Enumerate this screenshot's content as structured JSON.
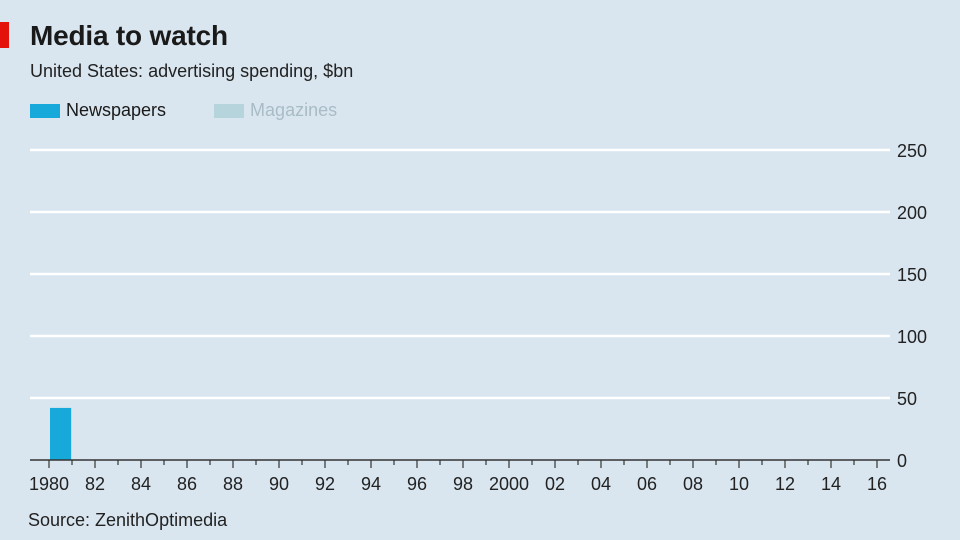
{
  "header": {
    "title": "Media to watch",
    "subtitle": "United States: advertising spending, $bn"
  },
  "legend": [
    {
      "label": "Newspapers",
      "color": "#18a9db",
      "text_color": "#1a1a1a"
    },
    {
      "label": "Magazines",
      "color": "#b6d4dc",
      "text_color": "#a9bcc6"
    }
  ],
  "source": "Source: ZenithOptimedia",
  "colors": {
    "background": "#d9e6ef",
    "gridline": "#ffffff",
    "accent": "#e3120b"
  },
  "chart_data": {
    "type": "bar",
    "title": "Media to watch",
    "subtitle": "United States: advertising spending, $bn",
    "xlabel": "",
    "ylabel": "",
    "x_range": [
      1980,
      2016
    ],
    "ylim": [
      0,
      250
    ],
    "y_ticks": [
      0,
      50,
      100,
      150,
      200,
      250
    ],
    "x_tick_labels": [
      {
        "year": 1980,
        "label": "1980"
      },
      {
        "year": 1982,
        "label": "82"
      },
      {
        "year": 1984,
        "label": "84"
      },
      {
        "year": 1986,
        "label": "86"
      },
      {
        "year": 1988,
        "label": "88"
      },
      {
        "year": 1990,
        "label": "90"
      },
      {
        "year": 1992,
        "label": "92"
      },
      {
        "year": 1994,
        "label": "94"
      },
      {
        "year": 1996,
        "label": "96"
      },
      {
        "year": 1998,
        "label": "98"
      },
      {
        "year": 2000,
        "label": "2000"
      },
      {
        "year": 2002,
        "label": "02"
      },
      {
        "year": 2004,
        "label": "04"
      },
      {
        "year": 2006,
        "label": "06"
      },
      {
        "year": 2008,
        "label": "08"
      },
      {
        "year": 2010,
        "label": "10"
      },
      {
        "year": 2012,
        "label": "12"
      },
      {
        "year": 2014,
        "label": "14"
      },
      {
        "year": 2016,
        "label": "16"
      }
    ],
    "series": [
      {
        "name": "Newspapers",
        "color": "#18a9db",
        "x": [
          1980
        ],
        "values": [
          42
        ]
      },
      {
        "name": "Magazines",
        "color": "#b6d4dc",
        "x": [],
        "values": []
      }
    ],
    "grid": true,
    "y_axis_side": "right",
    "legend_position": "top-left"
  }
}
